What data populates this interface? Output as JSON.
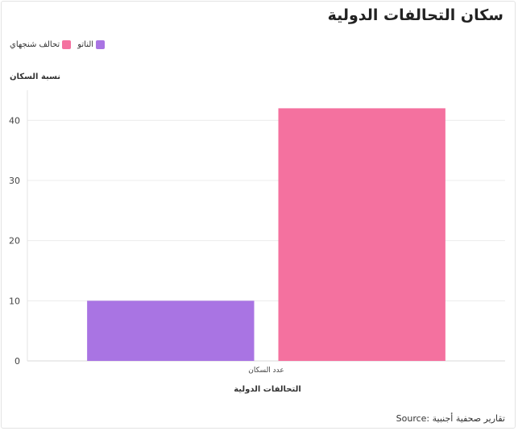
{
  "chart_data": {
    "type": "bar",
    "title": "سكان التحالفات الدولية",
    "xlabel": "التحالفات الدولية",
    "ylabel": "نسبة السكان",
    "categories": [
      "عدد السكان"
    ],
    "series": [
      {
        "name": "الناتو",
        "values": [
          10
        ],
        "color": "#a974e3"
      },
      {
        "name": "تحالف شنجهاي",
        "values": [
          42
        ],
        "color": "#f4719f"
      }
    ],
    "ylim": [
      0,
      45
    ],
    "yticks": [
      0,
      10,
      20,
      30,
      40
    ],
    "grid": true,
    "legend_position": "top-left"
  },
  "source": "Source: تقارير صحفية أجنبية"
}
